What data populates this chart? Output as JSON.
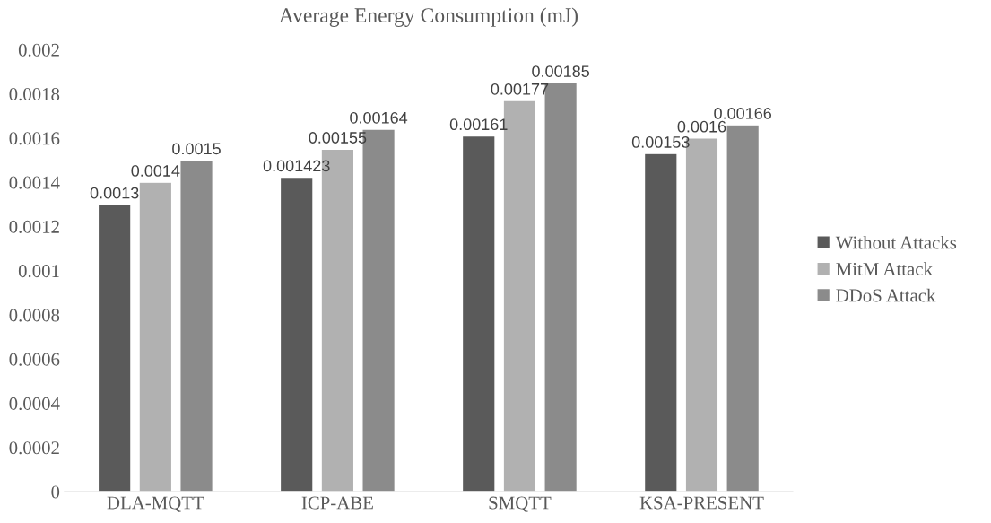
{
  "chart_data": {
    "type": "bar",
    "title": "Average Energy Consumption (mJ)",
    "categories": [
      "DLA-MQTT",
      "ICP-ABE",
      "SMQTT",
      "KSA-PRESENT"
    ],
    "series": [
      {
        "name": "Without Attacks",
        "color": "#5a5a5a",
        "values": [
          0.0013,
          0.001423,
          0.00161,
          0.00153
        ]
      },
      {
        "name": "MitM Attack",
        "color": "#b1b1b1",
        "values": [
          0.0014,
          0.00155,
          0.00177,
          0.0016
        ]
      },
      {
        "name": "DDoS Attack",
        "color": "#8b8b8b",
        "values": [
          0.0015,
          0.00164,
          0.00185,
          0.00166
        ]
      }
    ],
    "ylim": [
      0,
      0.002
    ],
    "yticks": [
      0,
      0.0002,
      0.0004,
      0.0006,
      0.0008,
      0.001,
      0.0012,
      0.0014,
      0.0016,
      0.0018,
      0.002
    ],
    "data_labels": true,
    "legend": "right",
    "grid": false
  }
}
